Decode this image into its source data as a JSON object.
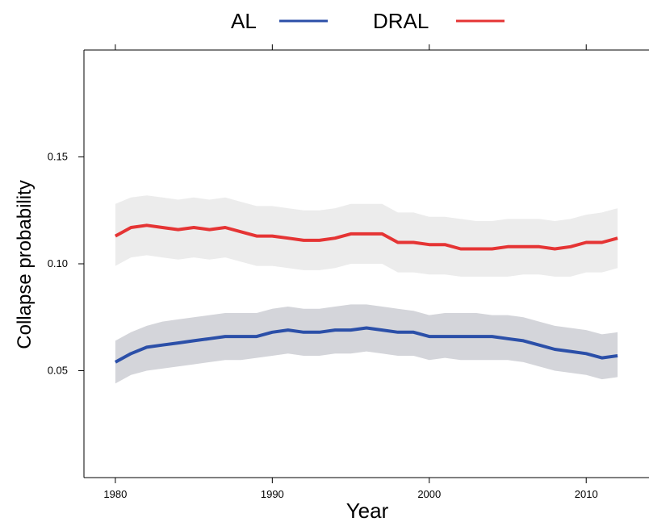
{
  "chart_data": {
    "type": "line",
    "title": "",
    "xlabel": "Year",
    "ylabel": "Collapse probability",
    "xlim": [
      1978,
      2014
    ],
    "ylim": [
      0,
      0.2
    ],
    "x_ticks": [
      "1980",
      "1990",
      "2000",
      "2010"
    ],
    "y_ticks": [
      "0.05",
      "0.10",
      "0.15"
    ],
    "grid": false,
    "legend_position": "top",
    "series": [
      {
        "name": "AL",
        "color": "#2b4fa8",
        "band_color": "#d4d5da",
        "x": [
          1980,
          1981,
          1982,
          1983,
          1984,
          1985,
          1986,
          1987,
          1988,
          1989,
          1990,
          1991,
          1992,
          1993,
          1994,
          1995,
          1996,
          1997,
          1998,
          1999,
          2000,
          2001,
          2002,
          2003,
          2004,
          2005,
          2006,
          2007,
          2008,
          2009,
          2010,
          2011,
          2012
        ],
        "values": [
          0.054,
          0.058,
          0.061,
          0.062,
          0.063,
          0.064,
          0.065,
          0.066,
          0.066,
          0.066,
          0.068,
          0.069,
          0.068,
          0.068,
          0.069,
          0.069,
          0.07,
          0.069,
          0.068,
          0.068,
          0.066,
          0.066,
          0.066,
          0.066,
          0.066,
          0.065,
          0.064,
          0.062,
          0.06,
          0.059,
          0.058,
          0.056,
          0.057
        ],
        "lower": [
          0.044,
          0.048,
          0.05,
          0.051,
          0.052,
          0.053,
          0.054,
          0.055,
          0.055,
          0.056,
          0.057,
          0.058,
          0.057,
          0.057,
          0.058,
          0.058,
          0.059,
          0.058,
          0.057,
          0.057,
          0.055,
          0.056,
          0.055,
          0.055,
          0.055,
          0.055,
          0.054,
          0.052,
          0.05,
          0.049,
          0.048,
          0.046,
          0.047
        ],
        "upper": [
          0.064,
          0.068,
          0.071,
          0.073,
          0.074,
          0.075,
          0.076,
          0.077,
          0.077,
          0.077,
          0.079,
          0.08,
          0.079,
          0.079,
          0.08,
          0.081,
          0.081,
          0.08,
          0.079,
          0.078,
          0.076,
          0.077,
          0.077,
          0.077,
          0.076,
          0.076,
          0.075,
          0.073,
          0.071,
          0.07,
          0.069,
          0.067,
          0.068
        ]
      },
      {
        "name": "DRAL",
        "color": "#e53434",
        "band_color": "#ececec",
        "x": [
          1980,
          1981,
          1982,
          1983,
          1984,
          1985,
          1986,
          1987,
          1988,
          1989,
          1990,
          1991,
          1992,
          1993,
          1994,
          1995,
          1996,
          1997,
          1998,
          1999,
          2000,
          2001,
          2002,
          2003,
          2004,
          2005,
          2006,
          2007,
          2008,
          2009,
          2010,
          2011,
          2012
        ],
        "values": [
          0.113,
          0.117,
          0.118,
          0.117,
          0.116,
          0.117,
          0.116,
          0.117,
          0.115,
          0.113,
          0.113,
          0.112,
          0.111,
          0.111,
          0.112,
          0.114,
          0.114,
          0.114,
          0.11,
          0.11,
          0.109,
          0.109,
          0.107,
          0.107,
          0.107,
          0.108,
          0.108,
          0.108,
          0.107,
          0.108,
          0.11,
          0.11,
          0.112
        ],
        "lower": [
          0.099,
          0.103,
          0.104,
          0.103,
          0.102,
          0.103,
          0.102,
          0.103,
          0.101,
          0.099,
          0.099,
          0.098,
          0.097,
          0.097,
          0.098,
          0.1,
          0.1,
          0.1,
          0.096,
          0.096,
          0.095,
          0.095,
          0.094,
          0.094,
          0.094,
          0.094,
          0.095,
          0.095,
          0.094,
          0.094,
          0.096,
          0.096,
          0.098
        ],
        "upper": [
          0.128,
          0.131,
          0.132,
          0.131,
          0.13,
          0.131,
          0.13,
          0.131,
          0.129,
          0.127,
          0.127,
          0.126,
          0.125,
          0.125,
          0.126,
          0.128,
          0.128,
          0.128,
          0.124,
          0.124,
          0.122,
          0.122,
          0.121,
          0.12,
          0.12,
          0.121,
          0.121,
          0.121,
          0.12,
          0.121,
          0.123,
          0.124,
          0.126
        ]
      }
    ]
  }
}
